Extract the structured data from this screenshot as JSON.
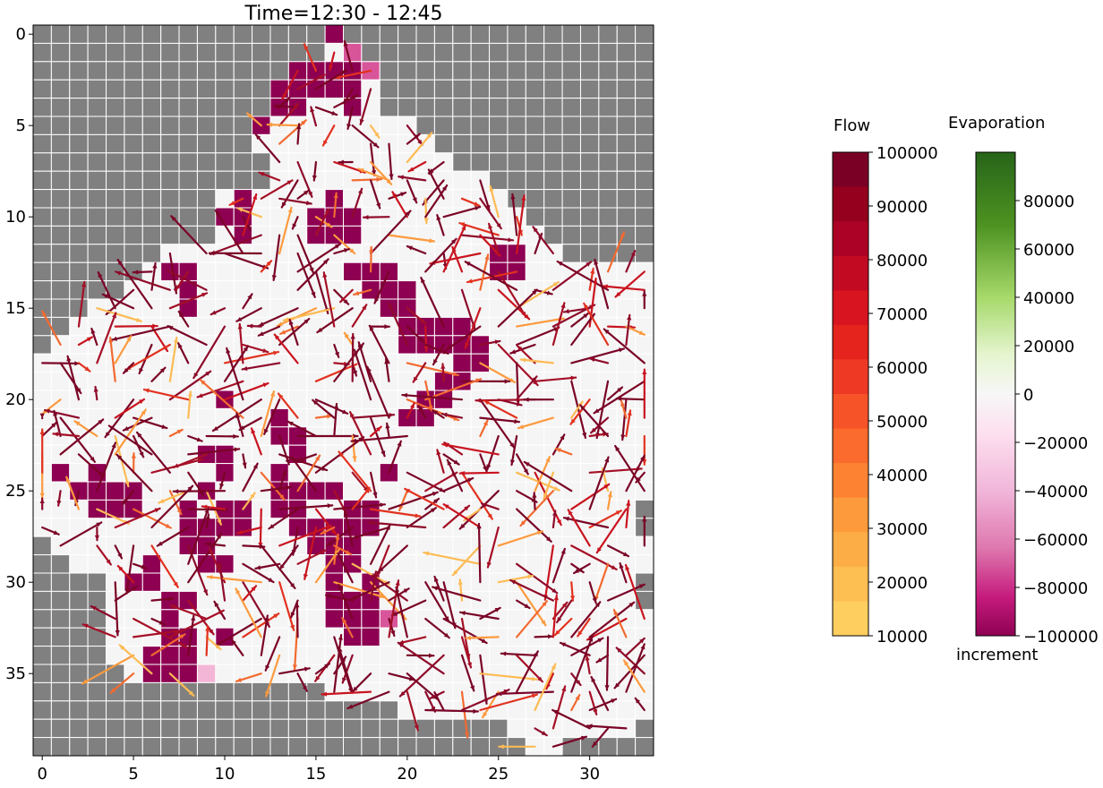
{
  "chart_data": {
    "type": "heatmap",
    "title": "Time=12:30 - 12:45",
    "xlabel": "",
    "ylabel": "",
    "xlim": [
      -0.5,
      33.5
    ],
    "ylim": [
      39.5,
      -0.5
    ],
    "x_ticks": [
      0,
      5,
      10,
      15,
      20,
      25,
      30
    ],
    "y_ticks": [
      0,
      5,
      10,
      15,
      20,
      25,
      30,
      35
    ],
    "grid": true,
    "cell_colors": {
      "background_outside": "#808080",
      "inside": "#f5f5f5",
      "evap_strong_negative": "#8e0152",
      "evap_medium_negative": "#d8559a",
      "evap_light_negative": "#f4b6d6",
      "arrow_default": "#7a0426"
    },
    "boundary_rows": [
      [
        16,
        16
      ],
      [
        16,
        16
      ],
      [
        14,
        18
      ],
      [
        13,
        18
      ],
      [
        13,
        18
      ],
      [
        12,
        20
      ],
      [
        12,
        21
      ],
      [
        13,
        22
      ],
      [
        13,
        24
      ],
      [
        10,
        25
      ],
      [
        10,
        26
      ],
      [
        10,
        27
      ],
      [
        7,
        28
      ],
      [
        6,
        33
      ],
      [
        5,
        33
      ],
      [
        3,
        33
      ],
      [
        2,
        33
      ],
      [
        1,
        33
      ],
      [
        0,
        33
      ],
      [
        0,
        33
      ],
      [
        0,
        33
      ],
      [
        0,
        33
      ],
      [
        0,
        33
      ],
      [
        0,
        33
      ],
      [
        0,
        33
      ],
      [
        0,
        33
      ],
      [
        0,
        32
      ],
      [
        0,
        32
      ],
      [
        1,
        33
      ],
      [
        2,
        33
      ],
      [
        4,
        32
      ],
      [
        4,
        32
      ],
      [
        4,
        33
      ],
      [
        4,
        33
      ],
      [
        4,
        33
      ],
      [
        5,
        33
      ],
      [
        16,
        33
      ],
      [
        20,
        33
      ],
      [
        26,
        32
      ],
      [
        27,
        28
      ]
    ],
    "evaporation_cells": [
      [
        16,
        0,
        -0.9
      ],
      [
        17,
        1,
        -0.55
      ],
      [
        17,
        2,
        -0.9
      ],
      [
        18,
        2,
        -0.55
      ],
      [
        14,
        2,
        -1
      ],
      [
        15,
        2,
        -1
      ],
      [
        16,
        2,
        -1
      ],
      [
        13,
        3,
        -1
      ],
      [
        14,
        3,
        -1
      ],
      [
        15,
        3,
        -1
      ],
      [
        16,
        3,
        -1
      ],
      [
        17,
        3,
        -1
      ],
      [
        13,
        4,
        -1
      ],
      [
        14,
        4,
        -1
      ],
      [
        17,
        4,
        -1
      ],
      [
        12,
        5,
        -1
      ],
      [
        11,
        9,
        -1
      ],
      [
        16,
        9,
        -1
      ],
      [
        10,
        10,
        -1
      ],
      [
        11,
        10,
        -1
      ],
      [
        15,
        10,
        -1
      ],
      [
        16,
        10,
        -1
      ],
      [
        17,
        10,
        -1
      ],
      [
        11,
        11,
        -1
      ],
      [
        15,
        11,
        -1
      ],
      [
        16,
        11,
        -1
      ],
      [
        17,
        11,
        -1
      ],
      [
        25,
        12,
        -1
      ],
      [
        26,
        12,
        -1
      ],
      [
        7,
        13,
        -1
      ],
      [
        8,
        13,
        -1
      ],
      [
        17,
        13,
        -1
      ],
      [
        18,
        13,
        -1
      ],
      [
        19,
        13,
        -1
      ],
      [
        25,
        13,
        -1
      ],
      [
        26,
        13,
        -1
      ],
      [
        8,
        14,
        -1
      ],
      [
        18,
        14,
        -1
      ],
      [
        19,
        14,
        -1
      ],
      [
        20,
        14,
        -1
      ],
      [
        8,
        15,
        -1
      ],
      [
        19,
        15,
        -1
      ],
      [
        20,
        15,
        -1
      ],
      [
        20,
        16,
        -1
      ],
      [
        21,
        16,
        -1
      ],
      [
        22,
        16,
        -1
      ],
      [
        23,
        16,
        -1
      ],
      [
        20,
        17,
        -1
      ],
      [
        21,
        17,
        -1
      ],
      [
        22,
        17,
        -1
      ],
      [
        23,
        17,
        -1
      ],
      [
        24,
        17,
        -1
      ],
      [
        23,
        18,
        -1
      ],
      [
        24,
        18,
        -1
      ],
      [
        22,
        19,
        -1
      ],
      [
        23,
        19,
        -1
      ],
      [
        21,
        20,
        -1
      ],
      [
        22,
        20,
        -1
      ],
      [
        20,
        21,
        -1
      ],
      [
        21,
        21,
        -1
      ],
      [
        10,
        20,
        -1
      ],
      [
        13,
        21,
        -1
      ],
      [
        14,
        22,
        -1
      ],
      [
        13,
        22,
        -1
      ],
      [
        9,
        23,
        -1
      ],
      [
        10,
        23,
        -1
      ],
      [
        14,
        23,
        -1
      ],
      [
        1,
        24,
        -1
      ],
      [
        3,
        24,
        -1
      ],
      [
        10,
        24,
        -1
      ],
      [
        13,
        24,
        -1
      ],
      [
        19,
        24,
        -1
      ],
      [
        2,
        25,
        -1
      ],
      [
        3,
        25,
        -1
      ],
      [
        4,
        25,
        -1
      ],
      [
        5,
        25,
        -1
      ],
      [
        9,
        25,
        -1
      ],
      [
        13,
        25,
        -1
      ],
      [
        14,
        25,
        -1
      ],
      [
        15,
        25,
        -1
      ],
      [
        16,
        25,
        -1
      ],
      [
        3,
        26,
        -1
      ],
      [
        4,
        26,
        -1
      ],
      [
        5,
        26,
        -1
      ],
      [
        8,
        26,
        -1
      ],
      [
        10,
        26,
        -1
      ],
      [
        11,
        26,
        -1
      ],
      [
        13,
        26,
        -1
      ],
      [
        14,
        26,
        -1
      ],
      [
        17,
        26,
        -1
      ],
      [
        18,
        26,
        -1
      ],
      [
        8,
        27,
        -1
      ],
      [
        9,
        27,
        -1
      ],
      [
        10,
        27,
        -1
      ],
      [
        11,
        27,
        -1
      ],
      [
        14,
        27,
        -1
      ],
      [
        15,
        27,
        -1
      ],
      [
        16,
        27,
        -1
      ],
      [
        17,
        27,
        -1
      ],
      [
        18,
        27,
        -1
      ],
      [
        8,
        28,
        -1
      ],
      [
        9,
        28,
        -1
      ],
      [
        15,
        28,
        -1
      ],
      [
        16,
        28,
        -1
      ],
      [
        17,
        28,
        -1
      ],
      [
        6,
        29,
        -1
      ],
      [
        9,
        29,
        -1
      ],
      [
        10,
        29,
        -1
      ],
      [
        16,
        29,
        -1
      ],
      [
        17,
        29,
        -1
      ],
      [
        5,
        30,
        -1
      ],
      [
        6,
        30,
        -1
      ],
      [
        16,
        30,
        -1
      ],
      [
        18,
        30,
        -1
      ],
      [
        7,
        31,
        -1
      ],
      [
        8,
        31,
        -1
      ],
      [
        16,
        31,
        -1
      ],
      [
        17,
        31,
        -1
      ],
      [
        18,
        31,
        -1
      ],
      [
        7,
        32,
        -1
      ],
      [
        16,
        32,
        -1
      ],
      [
        17,
        32,
        -1
      ],
      [
        18,
        32,
        -1
      ],
      [
        19,
        32,
        -0.8
      ],
      [
        7,
        33,
        -1
      ],
      [
        8,
        33,
        -1
      ],
      [
        10,
        33,
        -1
      ],
      [
        17,
        33,
        -1
      ],
      [
        18,
        33,
        -1
      ],
      [
        6,
        34,
        -1
      ],
      [
        7,
        34,
        -1
      ],
      [
        8,
        34,
        -1
      ],
      [
        6,
        35,
        -1
      ],
      [
        7,
        35,
        -1
      ],
      [
        8,
        35,
        -1
      ],
      [
        9,
        35,
        -0.25
      ]
    ],
    "flow_range": [
      10000,
      100000
    ],
    "evaporation_range": [
      -100000,
      100000
    ]
  },
  "colorbars": {
    "flow": {
      "title": "Flow",
      "labels": [
        "100000",
        "90000",
        "80000",
        "70000",
        "60000",
        "50000",
        "40000",
        "30000",
        "20000",
        "10000"
      ]
    },
    "evaporation": {
      "title": "Evaporation",
      "labels": [
        "80000",
        "60000",
        "40000",
        "20000",
        "0",
        "−20000",
        "−40000",
        "−60000",
        "−80000",
        "−100000"
      ],
      "footer": "increment"
    }
  }
}
